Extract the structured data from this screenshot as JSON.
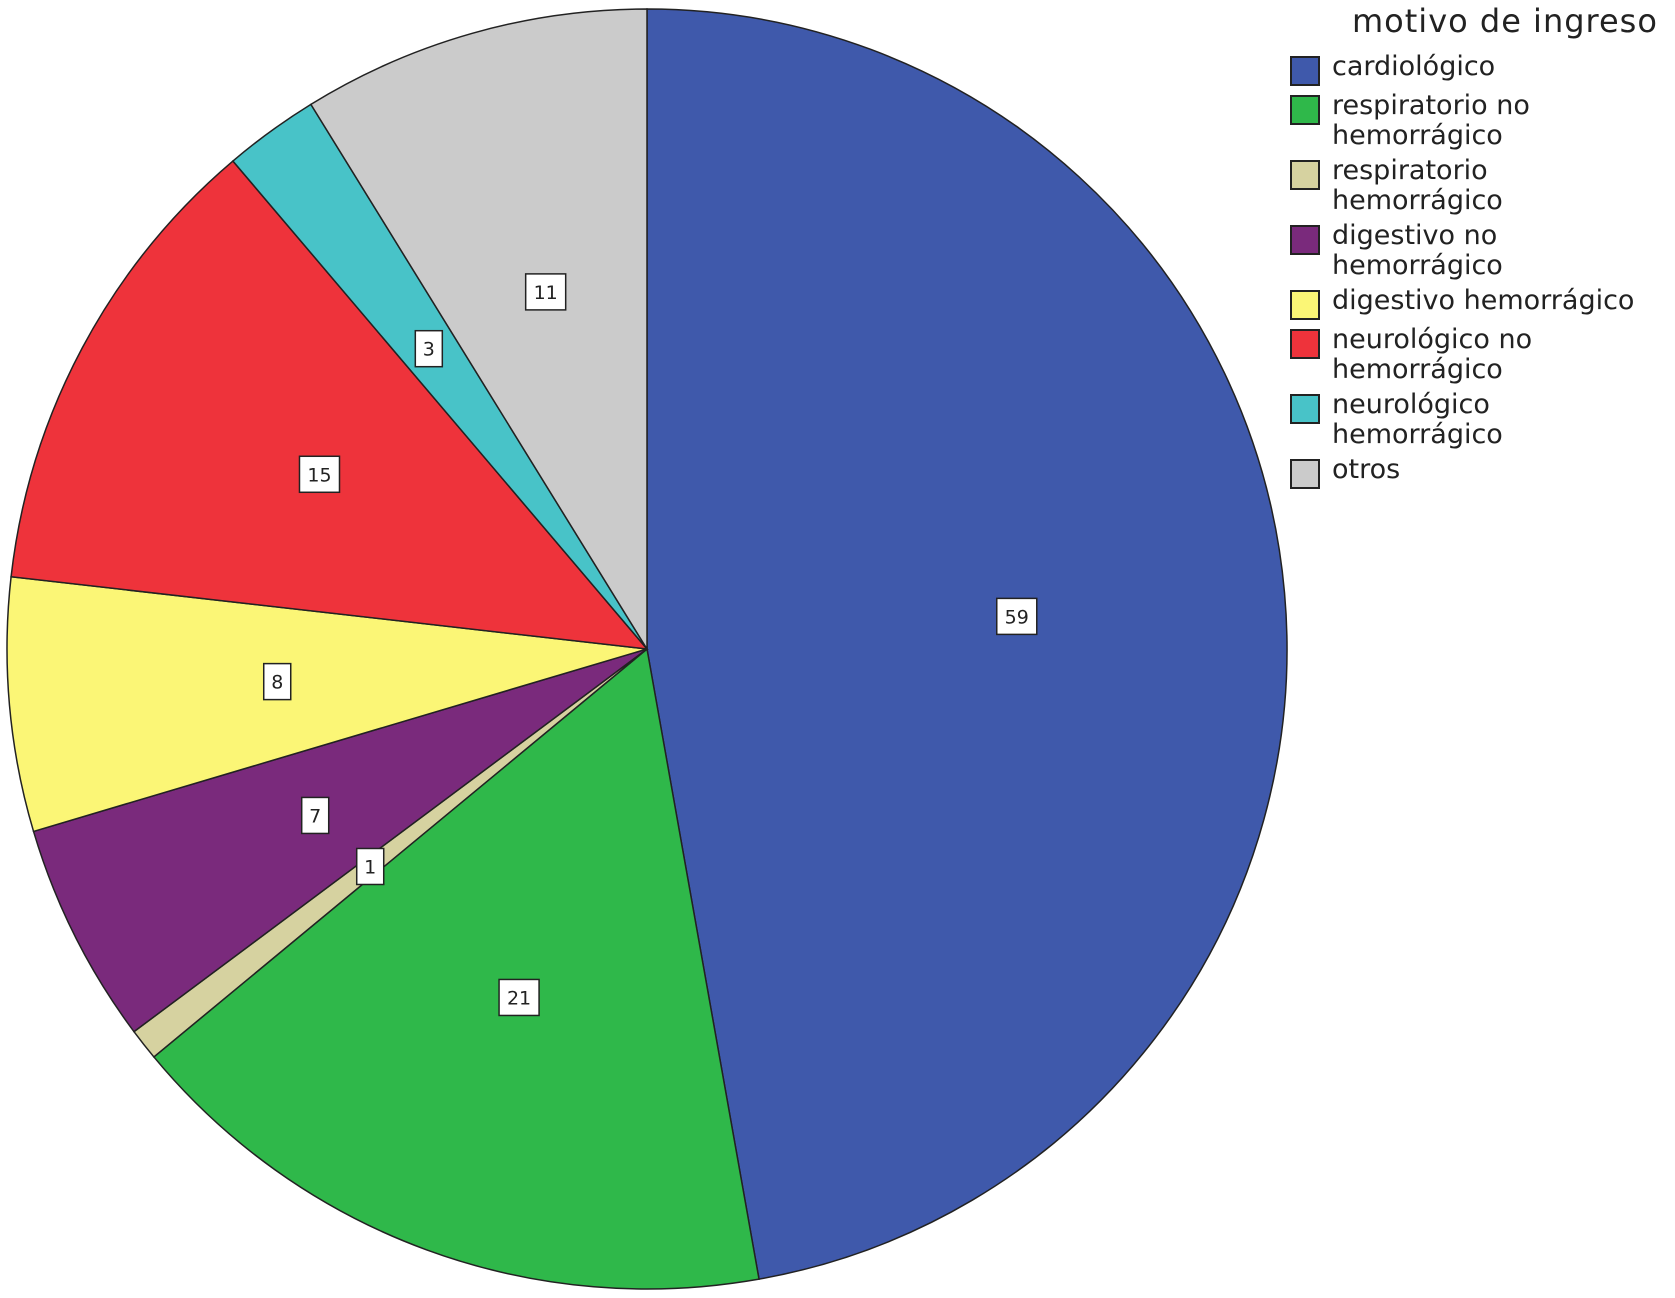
{
  "chart_data": {
    "type": "pie",
    "title": "",
    "legend_title": "motivo de ingreso",
    "legend_position": "right",
    "start_angle_deg": 0,
    "direction": "clockwise",
    "slices": [
      {
        "label": "cardiológico",
        "value": 59,
        "color": "#3f59ab"
      },
      {
        "label": "respiratorio no hemorrágico",
        "value": 21,
        "color": "#2fb84a"
      },
      {
        "label": "respiratorio hemorrágico",
        "value": 1,
        "color": "#d6d2a0"
      },
      {
        "label": "digestivo no hemorrágico",
        "value": 7,
        "color": "#7a2a7c"
      },
      {
        "label": "digestivo hemorrágico",
        "value": 8,
        "color": "#fbf676"
      },
      {
        "label": "neurológico no hemorrágico",
        "value": 15,
        "color": "#ee333b"
      },
      {
        "label": "neurológico hemorrágico",
        "value": 3,
        "color": "#48c3c8"
      },
      {
        "label": "otros",
        "value": 11,
        "color": "#cbcbcb"
      }
    ]
  }
}
